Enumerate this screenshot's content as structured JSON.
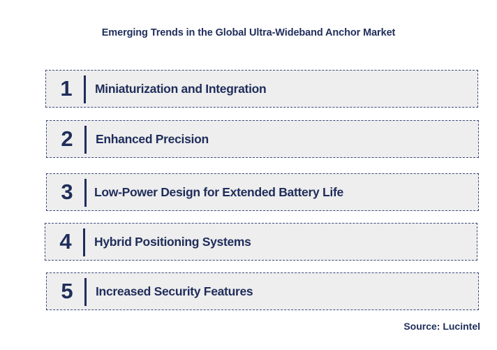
{
  "title": "Emerging Trends in the Global Ultra-Wideband Anchor Market",
  "trends": [
    {
      "number": "1",
      "label": "Miniaturization and Integration"
    },
    {
      "number": "2",
      "label": "Enhanced Precision"
    },
    {
      "number": "3",
      "label": "Low-Power Design for Extended Battery Life"
    },
    {
      "number": "4",
      "label": "Hybrid Positioning Systems"
    },
    {
      "number": "5",
      "label": "Increased Security Features"
    }
  ],
  "source": "Source: Lucintel",
  "colors": {
    "text": "#1f2d5a",
    "box_bg": "#eeeeee",
    "box_border": "#3b4a78"
  }
}
